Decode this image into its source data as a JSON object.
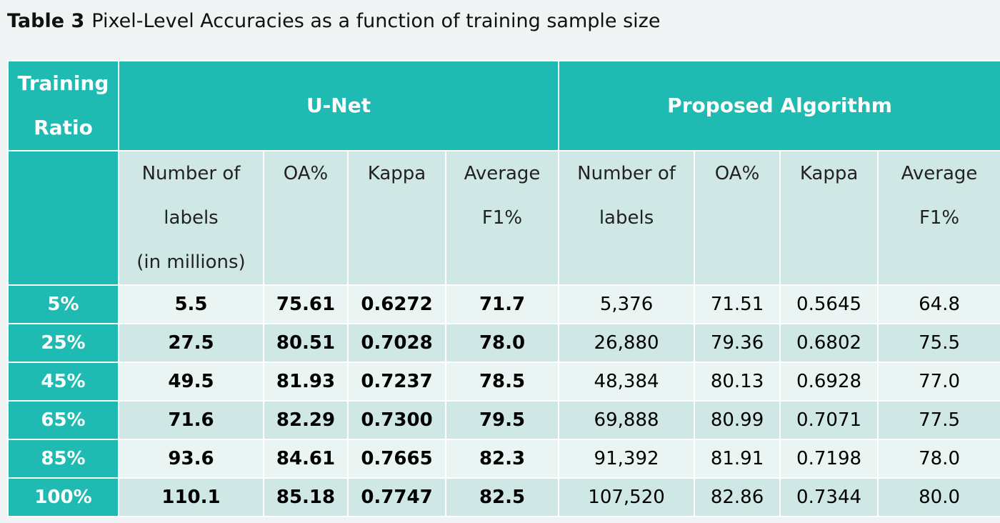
{
  "caption": {
    "label": "Table 3",
    "text": "Pixel-Level Accuracies as a function of training sample size"
  },
  "table": {
    "header1": {
      "col0": [
        "Training",
        "Ratio"
      ],
      "group1": "U-Net",
      "group2": "Proposed Algorithm"
    },
    "header2": {
      "unet": [
        [
          "Number of",
          "labels",
          "(in millions)"
        ],
        [
          "OA%"
        ],
        [
          "Kappa"
        ],
        [
          "Average",
          "F1%"
        ]
      ],
      "proposed": [
        [
          "Number of",
          "labels"
        ],
        [
          "OA%"
        ],
        [
          "Kappa"
        ],
        [
          "Average",
          "F1%"
        ]
      ]
    },
    "rows": [
      {
        "ratio": "5%",
        "cells": [
          "5.5",
          "75.61",
          "0.6272",
          "71.7",
          "5,376",
          "71.51",
          "0.5645",
          "64.8"
        ]
      },
      {
        "ratio": "25%",
        "cells": [
          "27.5",
          "80.51",
          "0.7028",
          "78.0",
          "26,880",
          "79.36",
          "0.6802",
          "75.5"
        ]
      },
      {
        "ratio": "45%",
        "cells": [
          "49.5",
          "81.93",
          "0.7237",
          "78.5",
          "48,384",
          "80.13",
          "0.6928",
          "77.0"
        ]
      },
      {
        "ratio": "65%",
        "cells": [
          "71.6",
          "82.29",
          "0.7300",
          "79.5",
          "69,888",
          "80.99",
          "0.7071",
          "77.5"
        ]
      },
      {
        "ratio": "85%",
        "cells": [
          "93.6",
          "84.61",
          "0.7665",
          "82.3",
          "91,392",
          "81.91",
          "0.7198",
          "78.0"
        ]
      },
      {
        "ratio": "100%",
        "cells": [
          "110.1",
          "85.18",
          "0.7747",
          "82.5",
          "107,520",
          "82.86",
          "0.7344",
          "80.0"
        ]
      }
    ]
  },
  "colors": {
    "teal": "#1fbab1",
    "light_row": "#e9f4f3",
    "dark_row": "#cfe8e6"
  }
}
